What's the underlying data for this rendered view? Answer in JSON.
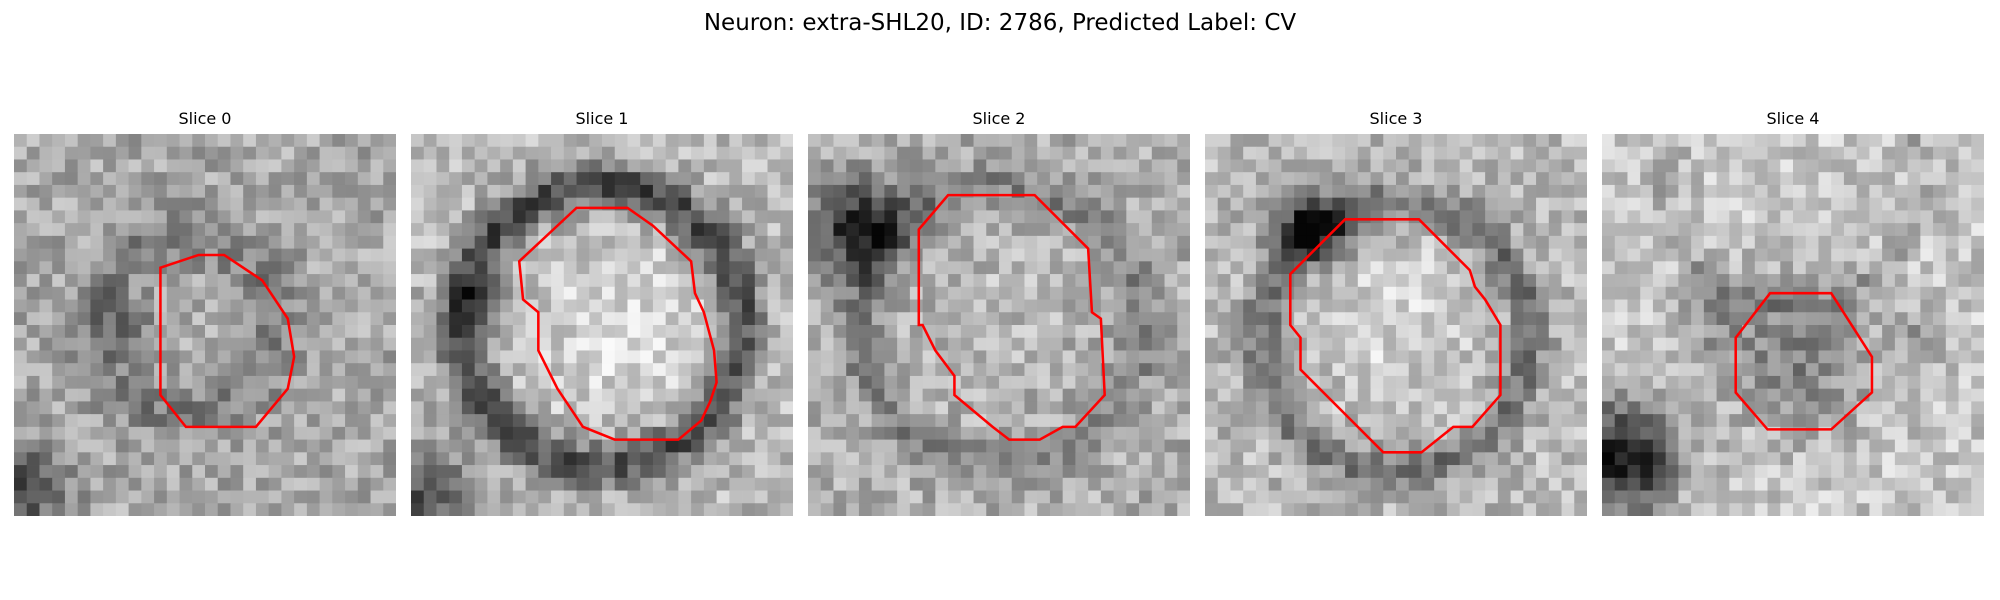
{
  "figure": {
    "title": "Neuron: extra-SHL20, ID: 2786, Predicted Label: CV"
  },
  "colors": {
    "contour": "#ff0000",
    "background": "#ffffff",
    "colormap": "gray"
  },
  "slices": [
    {
      "title": "Slice 0"
    },
    {
      "title": "Slice 1"
    },
    {
      "title": "Slice 2"
    },
    {
      "title": "Slice 3"
    },
    {
      "title": "Slice 4"
    }
  ]
}
